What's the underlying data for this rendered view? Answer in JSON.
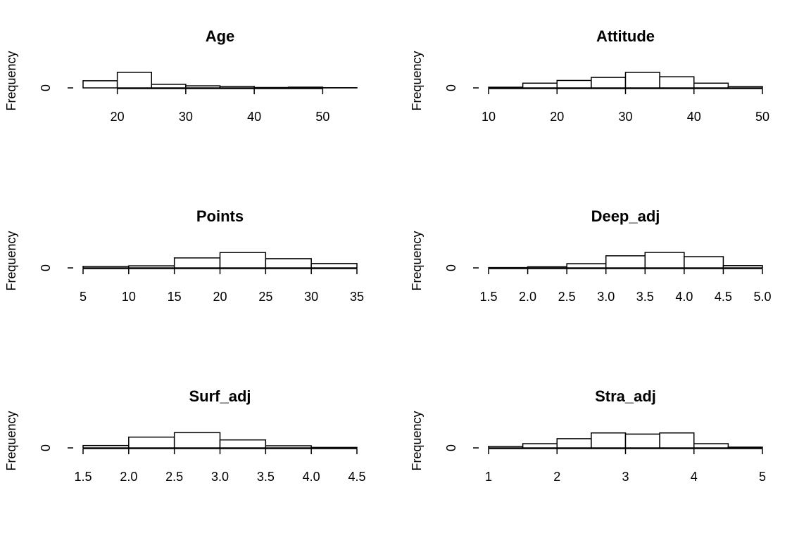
{
  "chart_data": [
    {
      "type": "histogram",
      "title": "Age",
      "y_label": "Frequency",
      "bins": [
        15,
        20,
        25,
        30,
        35,
        40,
        45,
        50,
        55
      ],
      "values": [
        38,
        83,
        19,
        11,
        8,
        2,
        4,
        1
      ],
      "xlim": [
        15,
        55
      ],
      "xticks": [
        20,
        30,
        40,
        50
      ],
      "ylim": [
        0,
        90
      ],
      "yticks": [
        0
      ]
    },
    {
      "type": "histogram",
      "title": "Attitude",
      "y_label": "Frequency",
      "bins": [
        10,
        15,
        20,
        25,
        30,
        35,
        40,
        45,
        50
      ],
      "values": [
        2,
        14,
        22,
        31,
        46,
        33,
        14,
        4
      ],
      "xlim": [
        10,
        50
      ],
      "xticks": [
        10,
        20,
        30,
        40,
        50
      ],
      "ylim": [
        0,
        50
      ],
      "yticks": [
        0
      ]
    },
    {
      "type": "histogram",
      "title": "Points",
      "y_label": "Frequency",
      "bins": [
        5,
        10,
        15,
        20,
        25,
        30,
        35
      ],
      "values": [
        6,
        8,
        39,
        60,
        36,
        17
      ],
      "xlim": [
        5,
        35
      ],
      "xticks": [
        5,
        10,
        15,
        20,
        25,
        30,
        35
      ],
      "ylim": [
        0,
        66
      ],
      "yticks": [
        0
      ]
    },
    {
      "type": "histogram",
      "title": "Deep_adj",
      "y_label": "Frequency",
      "bins": [
        1.5,
        2,
        2.5,
        3,
        3.5,
        4,
        4.5,
        5
      ],
      "values": [
        1,
        4,
        15,
        43,
        55,
        40,
        8
      ],
      "xlim": [
        1.5,
        5
      ],
      "xticks": [
        1.5,
        {
          "value": 2,
          "label": "2.0"
        },
        2.5,
        {
          "value": 3,
          "label": "3.0"
        },
        3.5,
        {
          "value": 4,
          "label": "4.0"
        },
        4.5,
        {
          "value": 5,
          "label": "5.0"
        }
      ],
      "ylim": [
        0,
        60
      ],
      "yticks": [
        0
      ]
    },
    {
      "type": "histogram",
      "title": "Surf_adj",
      "y_label": "Frequency",
      "bins": [
        1.5,
        2,
        2.5,
        3,
        3.5,
        4,
        4.5
      ],
      "values": [
        10,
        46,
        65,
        34,
        9,
        2
      ],
      "xlim": [
        1.5,
        4.5
      ],
      "xticks": [
        1.5,
        {
          "value": 2,
          "label": "2.0"
        },
        2.5,
        {
          "value": 3,
          "label": "3.0"
        },
        3.5,
        {
          "value": 4,
          "label": "4.0"
        },
        4.5
      ],
      "ylim": [
        0,
        72
      ],
      "yticks": [
        0
      ]
    },
    {
      "type": "histogram",
      "title": "Stra_adj",
      "y_label": "Frequency",
      "bins": [
        1,
        1.5,
        2,
        2.5,
        3,
        3.5,
        4,
        4.5,
        5
      ],
      "values": [
        4,
        11,
        24,
        39,
        36,
        39,
        11,
        2
      ],
      "xlim": [
        1,
        5
      ],
      "xticks": [
        1,
        2,
        3,
        4,
        5
      ],
      "ylim": [
        0,
        44
      ],
      "yticks": [
        0
      ]
    }
  ]
}
